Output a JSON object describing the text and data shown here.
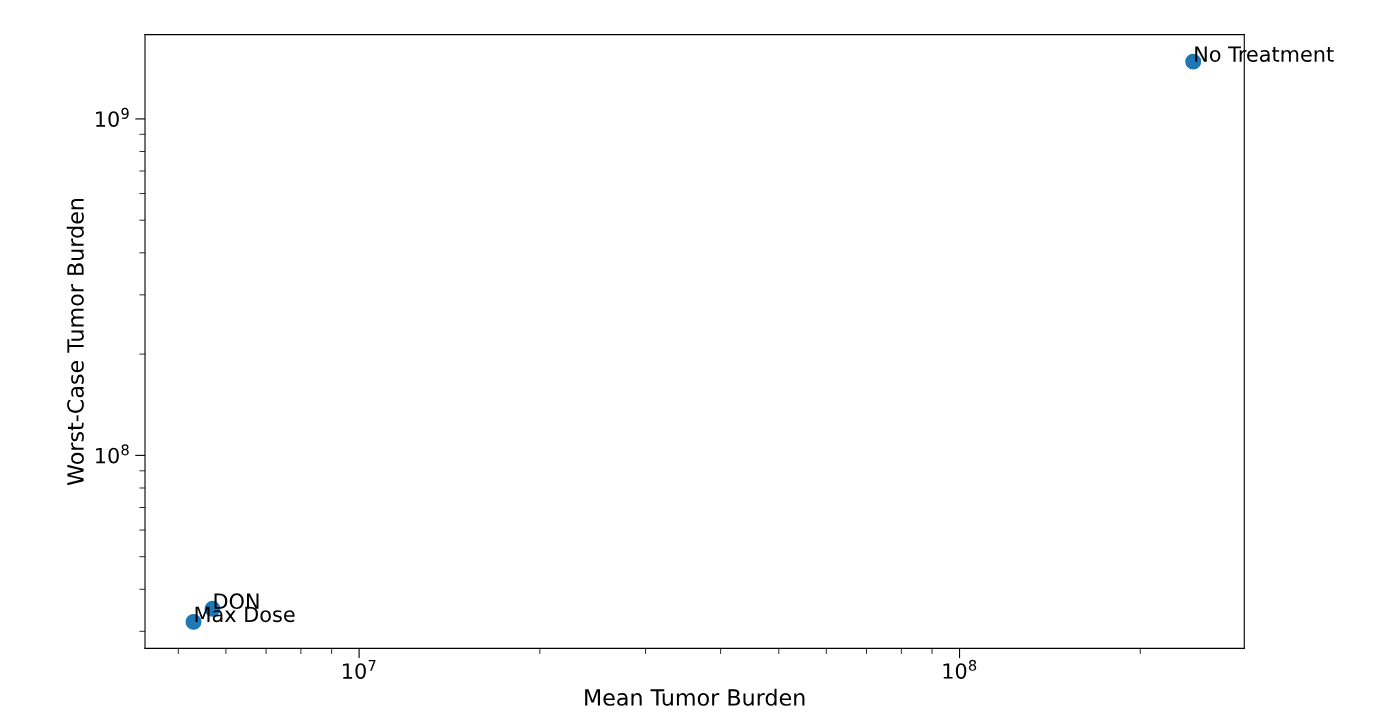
{
  "chart_data": {
    "type": "scatter",
    "xlabel": "Mean Tumor Burden",
    "ylabel": "Worst-Case Tumor Burden",
    "log": "xy",
    "x": [
      245000000,
      5700000,
      5300000
    ],
    "series": [
      {
        "color": "#1f77b4",
        "values": [
          1480000000,
          35000000,
          32000000
        ]
      }
    ],
    "annotations": [
      {
        "text": "No Treatment",
        "x": 245000000,
        "y": 1480000000
      },
      {
        "text": "DON",
        "x": 5700000,
        "y": 35000000
      },
      {
        "text": "Max Dose",
        "x": 5300000,
        "y": 32000000
      }
    ],
    "xlim": [
      4400000,
      298000000
    ],
    "ylim": [
      26700000,
      1780000000
    ],
    "xticks": [
      {
        "value": 10000000,
        "label": "10$^{7}$"
      },
      {
        "value": 100000000,
        "label": "10$^{8}$"
      }
    ],
    "yticks": [
      {
        "value": 100000000,
        "label": "10$^{8}$"
      },
      {
        "value": 1000000000,
        "label": "10$^{9}$"
      }
    ],
    "grid": false,
    "marker": "circle"
  }
}
